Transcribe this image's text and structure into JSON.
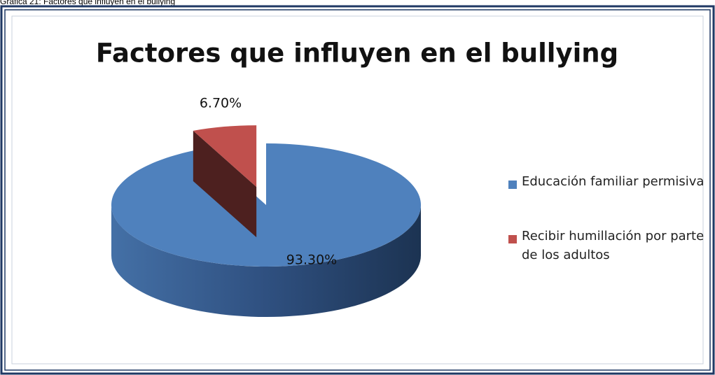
{
  "caption": "Gráfica 21: Factores que influyen en el bullying",
  "chart_data": {
    "type": "pie3d",
    "title": "Factores que influyen en el bullying",
    "categories": [
      "Educación familiar permisiva",
      "Recibir humillación por parte de los adultos"
    ],
    "values": [
      93.3,
      6.7
    ],
    "value_labels": [
      "93.30%",
      "6.70%"
    ],
    "colors": [
      "#4f81bd",
      "#c0504d"
    ],
    "legend": "right"
  }
}
